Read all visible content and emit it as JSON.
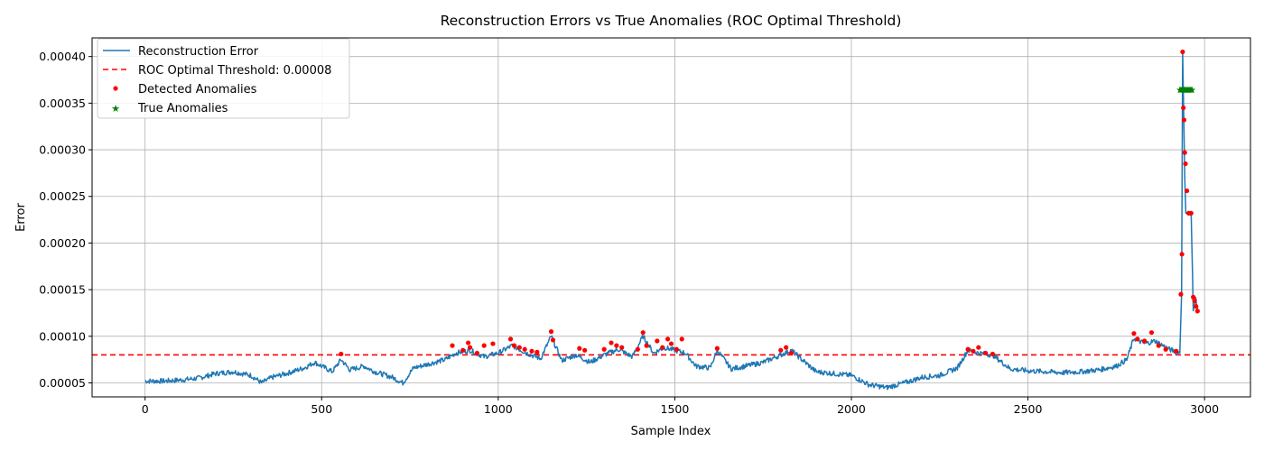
{
  "chart_data": {
    "type": "line",
    "title": "Reconstruction Errors vs True Anomalies (ROC Optimal Threshold)",
    "xlabel": "Sample Index",
    "ylabel": "Error",
    "xlim": [
      -150,
      3130
    ],
    "ylim": [
      3.5e-05,
      0.00042
    ],
    "xticks": [
      0,
      500,
      1000,
      1500,
      2000,
      2500,
      3000
    ],
    "yticks": [
      5e-05,
      0.0001,
      0.00015,
      0.0002,
      0.00025,
      0.0003,
      0.00035,
      0.0004
    ],
    "ytick_labels": [
      "0.00005",
      "0.00010",
      "0.00015",
      "0.00020",
      "0.00025",
      "0.00030",
      "0.00035",
      "0.00040"
    ],
    "grid": true,
    "legend_position": "top-left",
    "threshold": 8e-05,
    "series": [
      {
        "name": "Reconstruction Error",
        "kind": "line",
        "color": "#1f77b4",
        "x": [
          0,
          50,
          100,
          150,
          200,
          250,
          300,
          330,
          360,
          400,
          450,
          480,
          500,
          530,
          555,
          580,
          620,
          650,
          700,
          730,
          760,
          800,
          850,
          880,
          920,
          960,
          1000,
          1040,
          1080,
          1120,
          1150,
          1180,
          1220,
          1260,
          1300,
          1340,
          1380,
          1410,
          1440,
          1470,
          1500,
          1530,
          1560,
          1600,
          1620,
          1660,
          1700,
          1750,
          1800,
          1830,
          1860,
          1900,
          1950,
          2000,
          2050,
          2100,
          2150,
          2200,
          2250,
          2300,
          2330,
          2360,
          2400,
          2450,
          2500,
          2550,
          2600,
          2650,
          2700,
          2750,
          2780,
          2800,
          2830,
          2860,
          2900,
          2930,
          2935,
          2938,
          2941,
          2944,
          2947,
          2950,
          2955,
          2962,
          2968,
          2975,
          2980
        ],
        "y": [
          5.2e-05,
          5.2e-05,
          5.3e-05,
          5.5e-05,
          6e-05,
          6.2e-05,
          5.8e-05,
          5e-05,
          5.6e-05,
          6e-05,
          6.6e-05,
          7.2e-05,
          6.8e-05,
          6.2e-05,
          7.5e-05,
          6.4e-05,
          6.8e-05,
          6.2e-05,
          5.6e-05,
          5e-05,
          6.6e-05,
          7e-05,
          7.5e-05,
          8.2e-05,
          8.5e-05,
          7.8e-05,
          8.2e-05,
          9e-05,
          8.2e-05,
          7.6e-05,
          0.0001,
          7.4e-05,
          8e-05,
          7.2e-05,
          8e-05,
          8.6e-05,
          7.8e-05,
          0.0001,
          8.2e-05,
          8.8e-05,
          8.5e-05,
          8.2e-05,
          6.8e-05,
          6.6e-05,
          8.5e-05,
          6.5e-05,
          6.8e-05,
          7.2e-05,
          8e-05,
          8.5e-05,
          7.5e-05,
          6.2e-05,
          6e-05,
          5.8e-05,
          4.8e-05,
          4.5e-05,
          5e-05,
          5.6e-05,
          5.8e-05,
          6.6e-05,
          8.5e-05,
          8.2e-05,
          8e-05,
          6.5e-05,
          6.3e-05,
          6.2e-05,
          6.1e-05,
          6.2e-05,
          6.4e-05,
          6.8e-05,
          7.5e-05,
          9.8e-05,
          9.2e-05,
          9.5e-05,
          8.6e-05,
          8.2e-05,
          0.000145,
          0.000405,
          0.00034,
          0.00027,
          0.000232,
          0.000232,
          0.000232,
          0.000232,
          0.00013,
          0.00014,
          0.000128
        ]
      },
      {
        "name": "ROC Optimal Threshold: 0.00008",
        "kind": "hline",
        "color": "#ff0000",
        "y": 8e-05
      },
      {
        "name": "Detected Anomalies",
        "kind": "scatter",
        "color": "#ff0000",
        "x": [
          555,
          870,
          900,
          915,
          920,
          940,
          960,
          985,
          1035,
          1045,
          1060,
          1075,
          1095,
          1110,
          1150,
          1155,
          1230,
          1245,
          1300,
          1320,
          1335,
          1350,
          1395,
          1410,
          1420,
          1450,
          1465,
          1480,
          1490,
          1505,
          1520,
          1620,
          1800,
          1815,
          1830,
          2330,
          2345,
          2360,
          2380,
          2400,
          2800,
          2810,
          2830,
          2850,
          2870,
          2890,
          2920,
          2933,
          2936,
          2938,
          2940,
          2942,
          2944,
          2946,
          2950,
          2955,
          2962,
          2968,
          2972,
          2976,
          2980
        ],
        "y": [
          8.1e-05,
          9e-05,
          8.5e-05,
          9.3e-05,
          8.8e-05,
          8.2e-05,
          9e-05,
          9.2e-05,
          9.7e-05,
          9e-05,
          8.8e-05,
          8.6e-05,
          8.4e-05,
          8.3e-05,
          0.000105,
          9.6e-05,
          8.7e-05,
          8.5e-05,
          8.6e-05,
          9.3e-05,
          9e-05,
          8.8e-05,
          8.6e-05,
          0.000104,
          9e-05,
          9.5e-05,
          8.8e-05,
          9.7e-05,
          9.2e-05,
          8.6e-05,
          9.7e-05,
          8.7e-05,
          8.5e-05,
          8.8e-05,
          8.2e-05,
          8.6e-05,
          8.4e-05,
          8.8e-05,
          8.2e-05,
          8.1e-05,
          0.000103,
          9.7e-05,
          9.5e-05,
          0.000104,
          9e-05,
          8.6e-05,
          8.4e-05,
          0.000145,
          0.000188,
          0.000405,
          0.000345,
          0.000332,
          0.000297,
          0.000285,
          0.000256,
          0.000232,
          0.000232,
          0.000142,
          0.000138,
          0.000132,
          0.000127
        ]
      },
      {
        "name": "True Anomalies",
        "kind": "scatter-star",
        "color": "#008000",
        "x_range": [
          2930,
          2965
        ],
        "y": 0.000365
      }
    ]
  }
}
